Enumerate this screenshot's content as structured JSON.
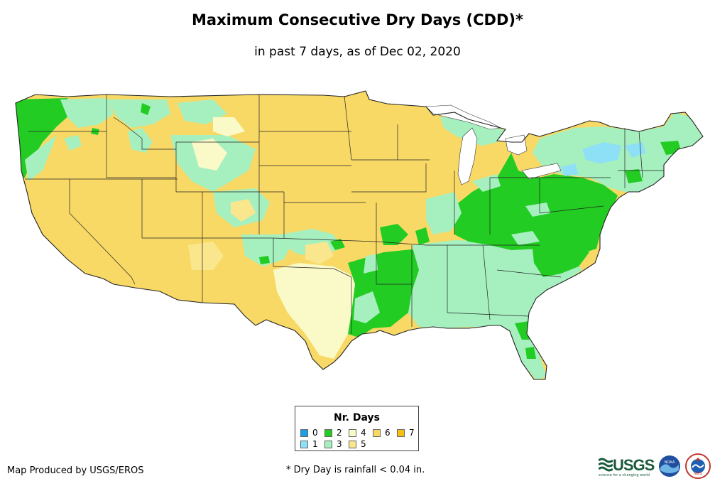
{
  "title": "Maximum Consecutive Dry Days (CDD)*",
  "subtitle": "in past 7 days, as of Dec 02, 2020",
  "legend": {
    "title": "Nr. Days",
    "items": [
      {
        "label": "0",
        "color": "#1aa0e6"
      },
      {
        "label": "1",
        "color": "#8de0f5"
      },
      {
        "label": "2",
        "color": "#22cc22"
      },
      {
        "label": "3",
        "color": "#a6f0c0"
      },
      {
        "label": "4",
        "color": "#fafac8"
      },
      {
        "label": "5",
        "color": "#fae68c"
      },
      {
        "label": "6",
        "color": "#f8d966"
      },
      {
        "label": "7",
        "color": "#f5bf14"
      }
    ]
  },
  "credit": "Map Produced by USGS/EROS",
  "footnote": "* Dry Day is rainfall < 0.04 in.",
  "logos": {
    "usgs": "USGS",
    "usgs_tagline": "science for a changing world",
    "noaa": "NOAA",
    "nws": "NWS"
  }
}
